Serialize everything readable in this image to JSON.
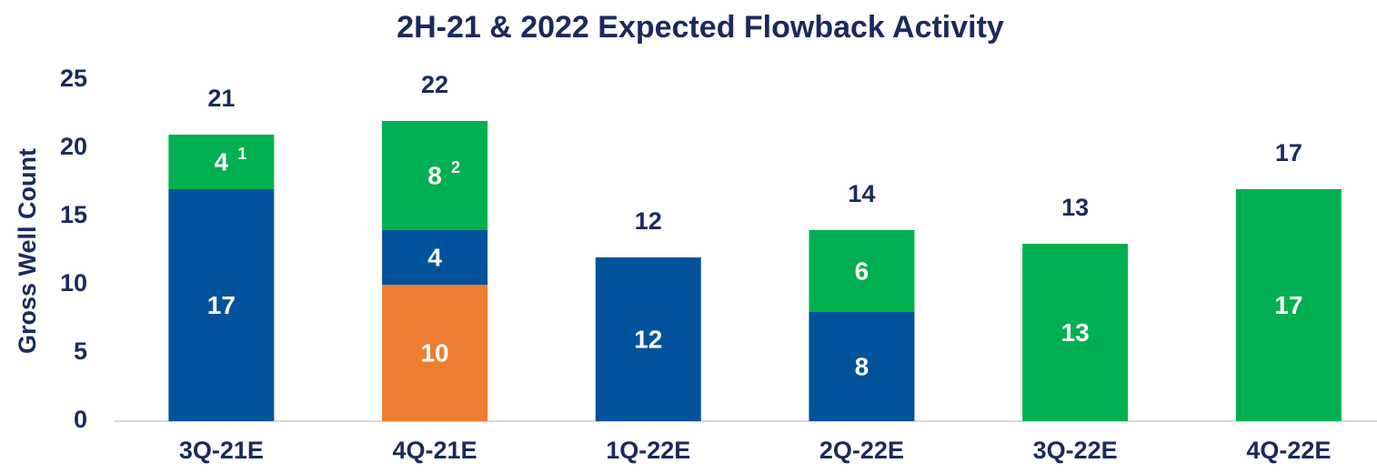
{
  "chart_data": {
    "type": "stacked_bar",
    "title": "2H-21 & 2022 Expected Flowback Activity",
    "y_label": "Gross Well Count",
    "categories": [
      "3Q-21E",
      "4Q-21E",
      "1Q-22E",
      "2Q-22E",
      "3Q-22E",
      "4Q-22E"
    ],
    "series": [
      {
        "color": "#ed7d31",
        "values": [
          null,
          10,
          null,
          null,
          null,
          null
        ]
      },
      {
        "color": "#00529b",
        "values": [
          17,
          4,
          12,
          8,
          null,
          null
        ]
      },
      {
        "color": "#00b050",
        "values": [
          4,
          8,
          null,
          6,
          13,
          17
        ],
        "superscripts": [
          "1",
          "2",
          null,
          null,
          null,
          null
        ]
      }
    ],
    "totals": [
      21,
      22,
      12,
      14,
      13,
      17
    ],
    "ylim": [
      0,
      25
    ],
    "yticks": [
      0,
      5,
      10,
      15,
      20,
      25
    ],
    "grid": false
  }
}
